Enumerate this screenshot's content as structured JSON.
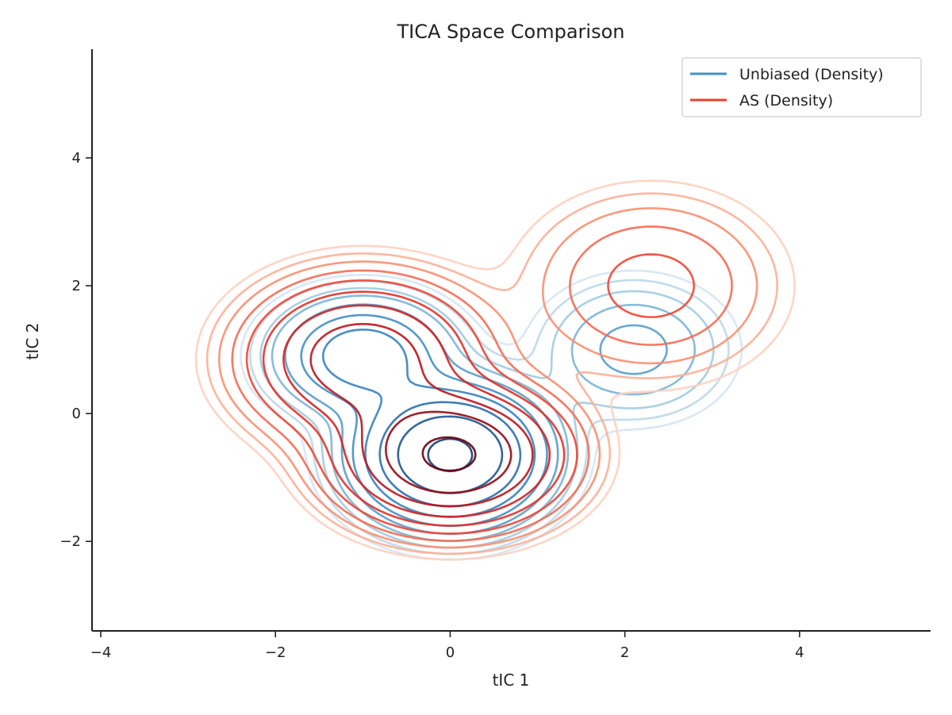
{
  "chart_data": {
    "type": "contour",
    "title": "TICA Space Comparison",
    "xlabel": "tIC 1",
    "ylabel": "tIC 2",
    "xlim": [
      -4.1,
      5.5
    ],
    "ylim": [
      -3.4,
      5.7
    ],
    "xticks": [
      -4,
      -2,
      0,
      2,
      4
    ],
    "yticks": [
      -2,
      0,
      2,
      4
    ],
    "legend_position": "top-right",
    "series": [
      {
        "name": "Unbiased (Density)",
        "color": "#4292c6",
        "colormap": "Blues",
        "levels": 10,
        "density_peak": [
          0.0,
          -0.65
        ],
        "components": [
          {
            "center": [
              0.0,
              -0.65
            ],
            "sigma": [
              0.55,
              0.55
            ],
            "weight": 1.0
          },
          {
            "center": [
              -1.0,
              0.9
            ],
            "sigma": [
              0.55,
              0.5
            ],
            "weight": 0.3
          },
          {
            "center": [
              2.1,
              1.0
            ],
            "sigma": [
              0.6,
              0.6
            ],
            "weight": 0.1
          }
        ]
      },
      {
        "name": "AS (Density)",
        "color": "#e8412c",
        "colormap": "Reds",
        "levels": 10,
        "density_peak": [
          0.0,
          -0.65
        ],
        "components": [
          {
            "center": [
              0.0,
              -0.65
            ],
            "sigma": [
              0.65,
              0.55
            ],
            "weight": 1.0
          },
          {
            "center": [
              -1.0,
              0.85
            ],
            "sigma": [
              0.7,
              0.65
            ],
            "weight": 0.5
          },
          {
            "center": [
              2.3,
              2.0
            ],
            "sigma": [
              0.8,
              0.8
            ],
            "weight": 0.1
          }
        ]
      }
    ]
  }
}
